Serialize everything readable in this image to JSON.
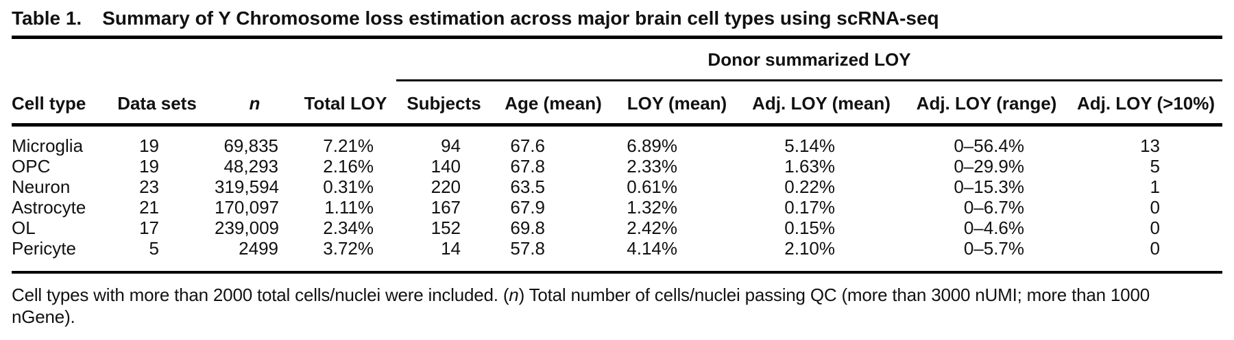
{
  "table": {
    "label": "Table 1.",
    "title": "Summary of Y Chromosome loss estimation across major brain cell types using scRNA-seq",
    "group_header": "Donor summarized LOY",
    "columns": [
      "Cell type",
      "Data sets",
      "n",
      "Total LOY",
      "Subjects",
      "Age (mean)",
      "LOY (mean)",
      "Adj. LOY (mean)",
      "Adj. LOY (range)",
      "Adj. LOY (>10%)"
    ],
    "rows": [
      [
        "Microglia",
        "19",
        "69,835",
        "7.21%",
        "94",
        "67.6",
        "6.89%",
        "5.14%",
        "0–56.4%",
        "13"
      ],
      [
        "OPC",
        "19",
        "48,293",
        "2.16%",
        "140",
        "67.8",
        "2.33%",
        "1.63%",
        "0–29.9%",
        "5"
      ],
      [
        "Neuron",
        "23",
        "319,594",
        "0.31%",
        "220",
        "63.5",
        "0.61%",
        "0.22%",
        "0–15.3%",
        "1"
      ],
      [
        "Astrocyte",
        "21",
        "170,097",
        "1.11%",
        "167",
        "67.9",
        "1.32%",
        "0.17%",
        "0–6.7%",
        "0"
      ],
      [
        "OL",
        "17",
        "239,009",
        "2.34%",
        "152",
        "69.8",
        "2.42%",
        "0.15%",
        "0–4.6%",
        "0"
      ],
      [
        "Pericyte",
        "5",
        "2499",
        "3.72%",
        "14",
        "57.8",
        "4.14%",
        "2.10%",
        "0–5.7%",
        "0"
      ]
    ],
    "footnote": {
      "line1_pre": "Cell types with more than 2000 total cells/nuclei were included. (",
      "n_italic": "n",
      "line1_post": ") Total number of cells/nuclei passing QC (more than 3000 nUMI; more than 1000",
      "line2": "nGene)."
    }
  },
  "colors": {
    "text": "#111111",
    "background": "#ffffff",
    "rule": "#000000"
  }
}
